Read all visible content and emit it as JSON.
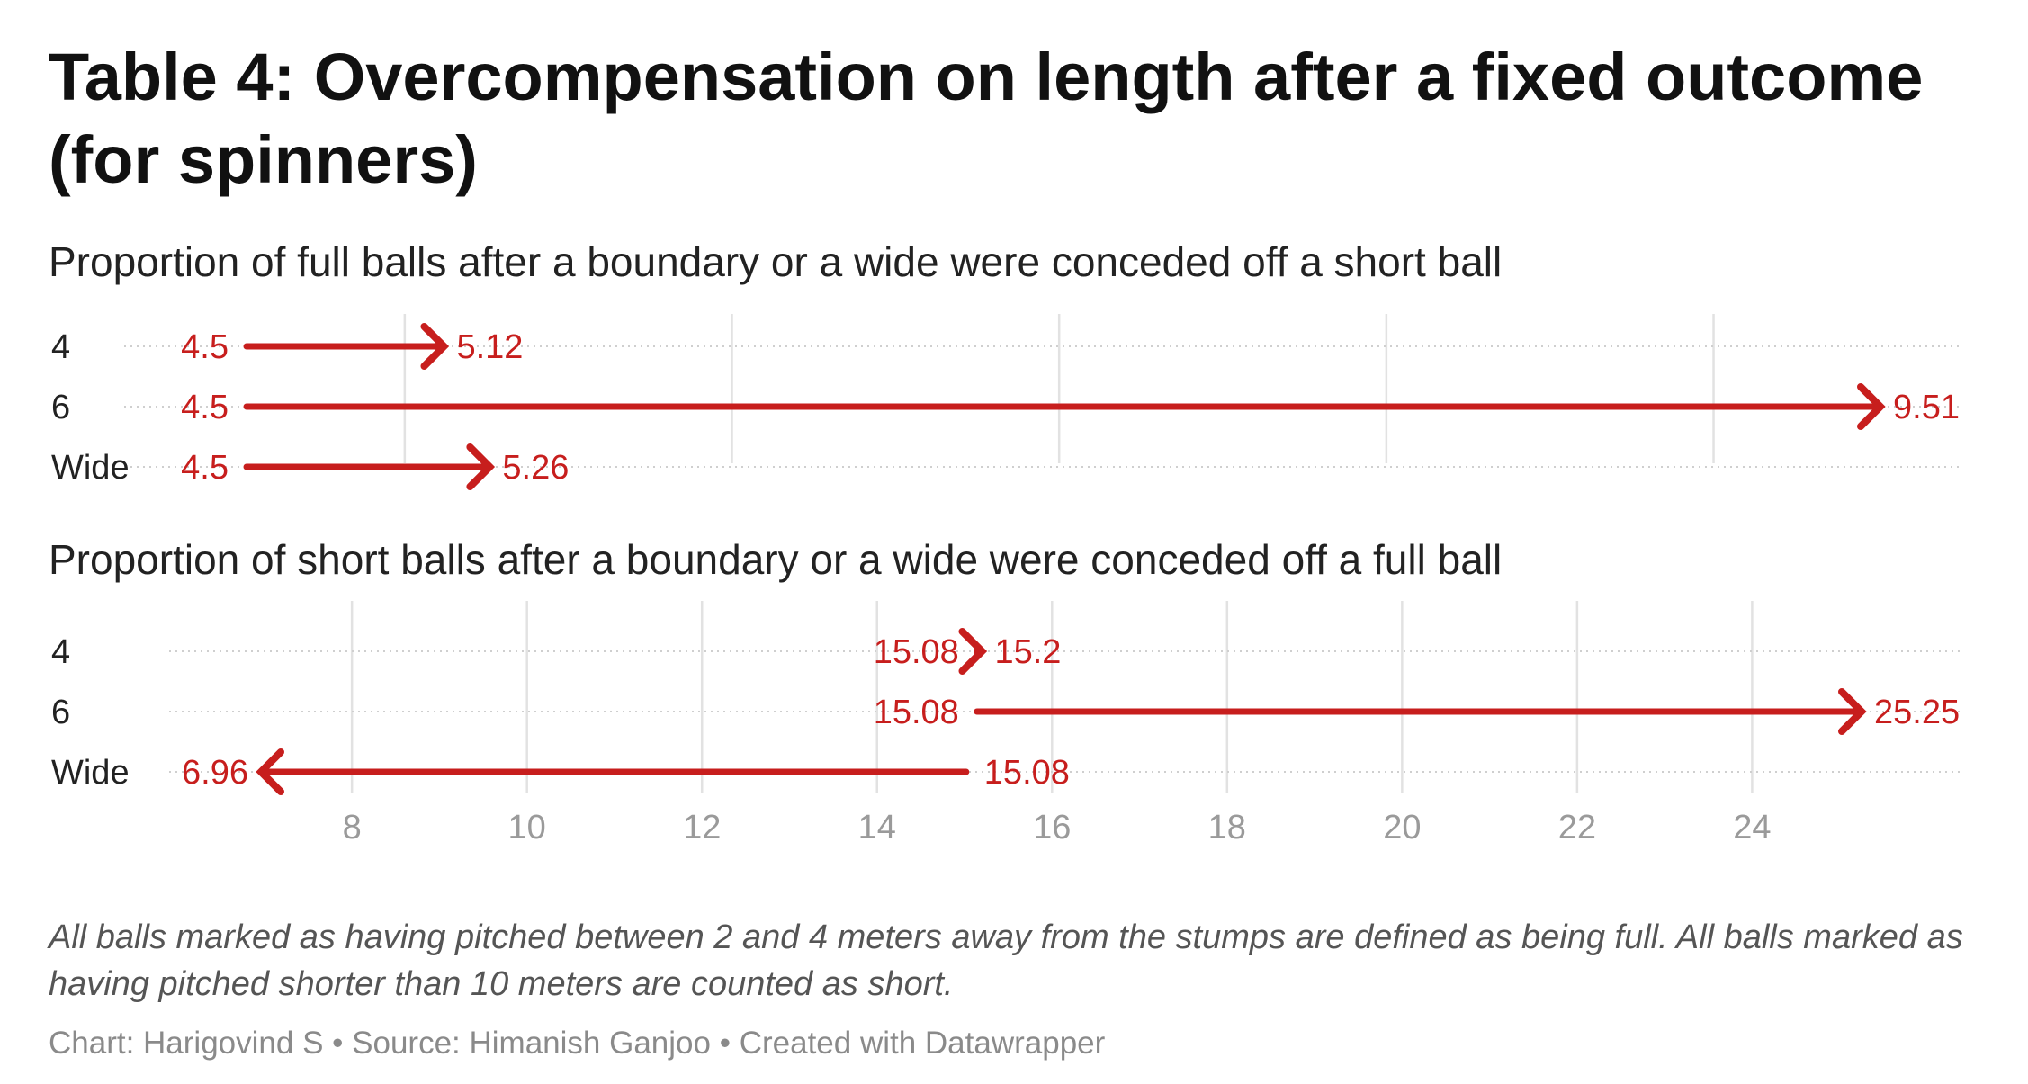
{
  "title": "Table 4: Overcompensation on length after a fixed outcome (for spinners)",
  "notes": "All balls marked as having pitched between 2 and 4 meters away from the stumps are defined as being full. All balls marked as having pitched shorter than 10 meters are counted as short.",
  "footer": {
    "chart_credit": "Chart: Harigovind S",
    "separator": "•",
    "source": "Source: Himanish Ganjoo",
    "tool": "Created with Datawrapper"
  },
  "colors": {
    "arrow": "#c71e1d",
    "grid": "#e2e2e2",
    "tick_label": "#9a9a9a"
  },
  "chart_data": [
    {
      "type": "arrow",
      "title": "Proportion of full balls after a boundary or a wide were conceded off a short ball",
      "rows": [
        {
          "label": "4",
          "start": 4.5,
          "end": 5.12
        },
        {
          "label": "6",
          "start": 4.5,
          "end": 9.51
        },
        {
          "label": "Wide",
          "start": 4.5,
          "end": 5.26
        }
      ],
      "xlim": [
        4.5,
        9.51
      ],
      "grid_lines": [
        5,
        6,
        7,
        8,
        9
      ],
      "grid": true
    },
    {
      "type": "arrow",
      "title": "Proportion of short balls after a boundary or a wide were conceded off a full ball",
      "rows": [
        {
          "label": "4",
          "start": 15.08,
          "end": 15.2
        },
        {
          "label": "6",
          "start": 15.08,
          "end": 25.25
        },
        {
          "label": "Wide",
          "start": 15.08,
          "end": 6.96
        }
      ],
      "xlim": [
        6.96,
        25.25
      ],
      "ticks": [
        8,
        10,
        12,
        14,
        16,
        18,
        20,
        22,
        24
      ],
      "grid": true
    }
  ]
}
